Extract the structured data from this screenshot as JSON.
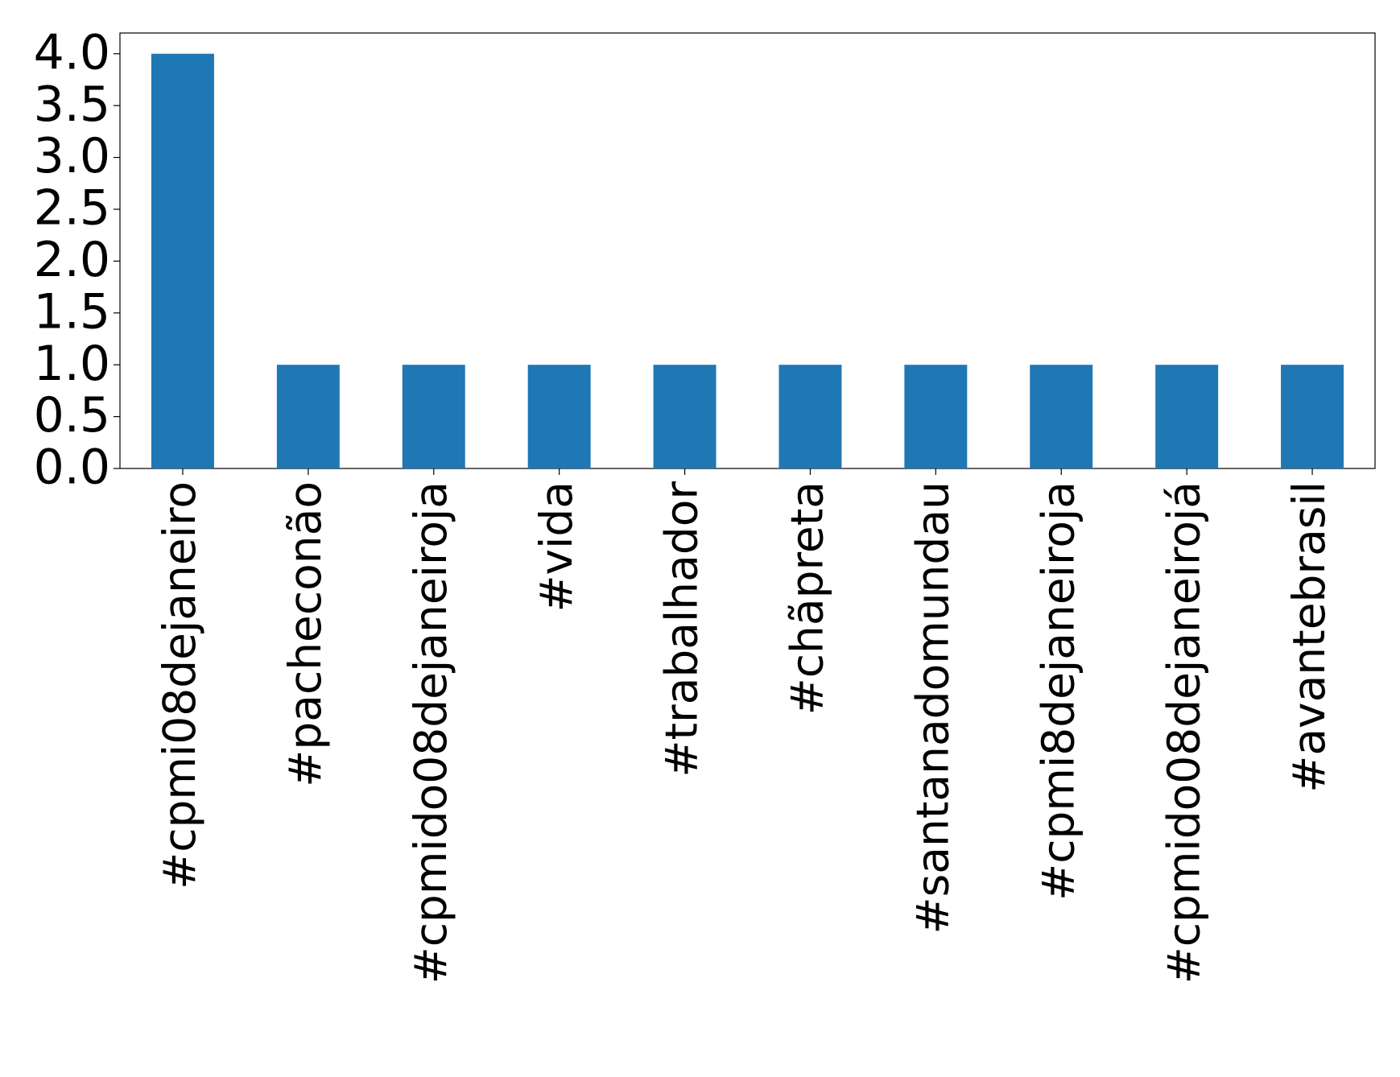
{
  "chart_data": {
    "type": "bar",
    "categories": [
      "#cpmi08dejaneiro",
      "#pacheconão",
      "#cpmido08dejaneiroja",
      "#vida",
      "#trabalhador",
      "#chãpreta",
      "#santanadomundau",
      "#cpmi8dejaneiroja",
      "#cpmido08dejaneirojá",
      "#avantebrasil"
    ],
    "values": [
      4,
      1,
      1,
      1,
      1,
      1,
      1,
      1,
      1,
      1
    ],
    "color": "#1f77b4",
    "ylim": [
      0,
      4.2
    ],
    "yticks": [
      {
        "value": 0,
        "label": "0.0"
      },
      0.5,
      {
        "value": 1,
        "label": "1.0"
      },
      1.5,
      {
        "value": 2,
        "label": "2.0"
      },
      2.5,
      {
        "value": 3,
        "label": "3.0"
      },
      3.5,
      {
        "value": 4,
        "label": "4.0"
      }
    ],
    "grid": false
  }
}
